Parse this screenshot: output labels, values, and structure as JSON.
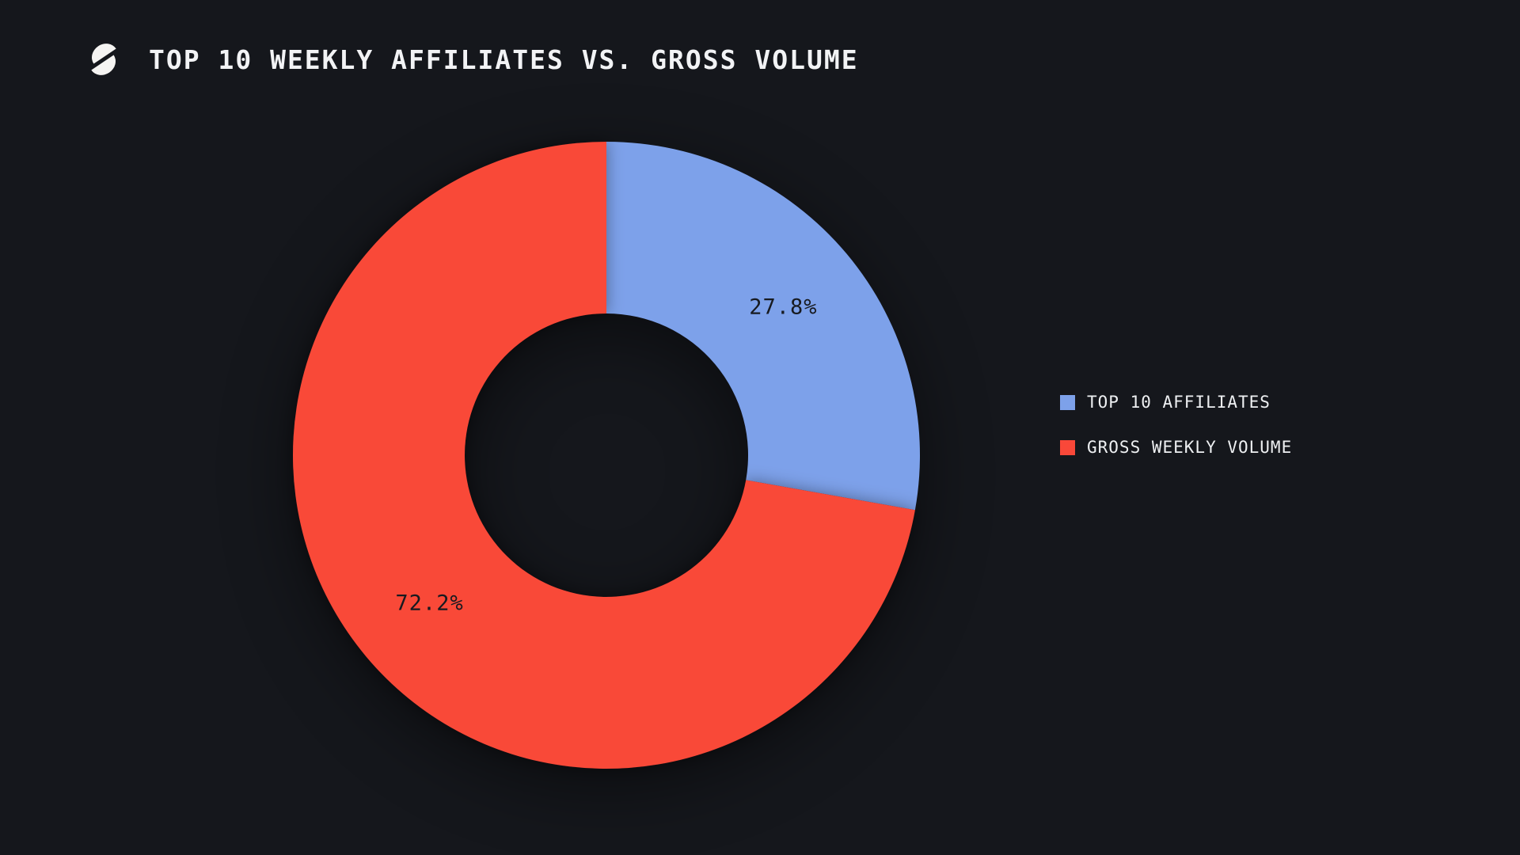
{
  "app": {
    "background_color": "#15171c"
  },
  "header": {
    "title": "TOP 10 WEEKLY AFFILIATES VS. GROSS VOLUME",
    "logo": "sliced-circle-logo",
    "logo_color": "#f5f4f2"
  },
  "chart_data": {
    "type": "pie",
    "variant": "donut",
    "title": "TOP 10 WEEKLY AFFILIATES VS. GROSS VOLUME",
    "categories": [
      "TOP 10 AFFILIATES",
      "GROSS WEEKLY VOLUME"
    ],
    "values": [
      27.8,
      72.2
    ],
    "value_labels": [
      "27.8%",
      "72.2%"
    ],
    "colors": [
      "#7da1ea",
      "#f94839"
    ],
    "start_angle_deg": 0,
    "direction": "clockwise",
    "inner_radius_ratio": 0.452,
    "slice_label_color": "#171a20",
    "legend_position": "right",
    "grid": false,
    "background_color": "#15171c"
  },
  "legend": {
    "items": [
      {
        "label": "TOP 10 AFFILIATES",
        "color": "#7da1ea"
      },
      {
        "label": "GROSS WEEKLY VOLUME",
        "color": "#f94839"
      }
    ]
  }
}
